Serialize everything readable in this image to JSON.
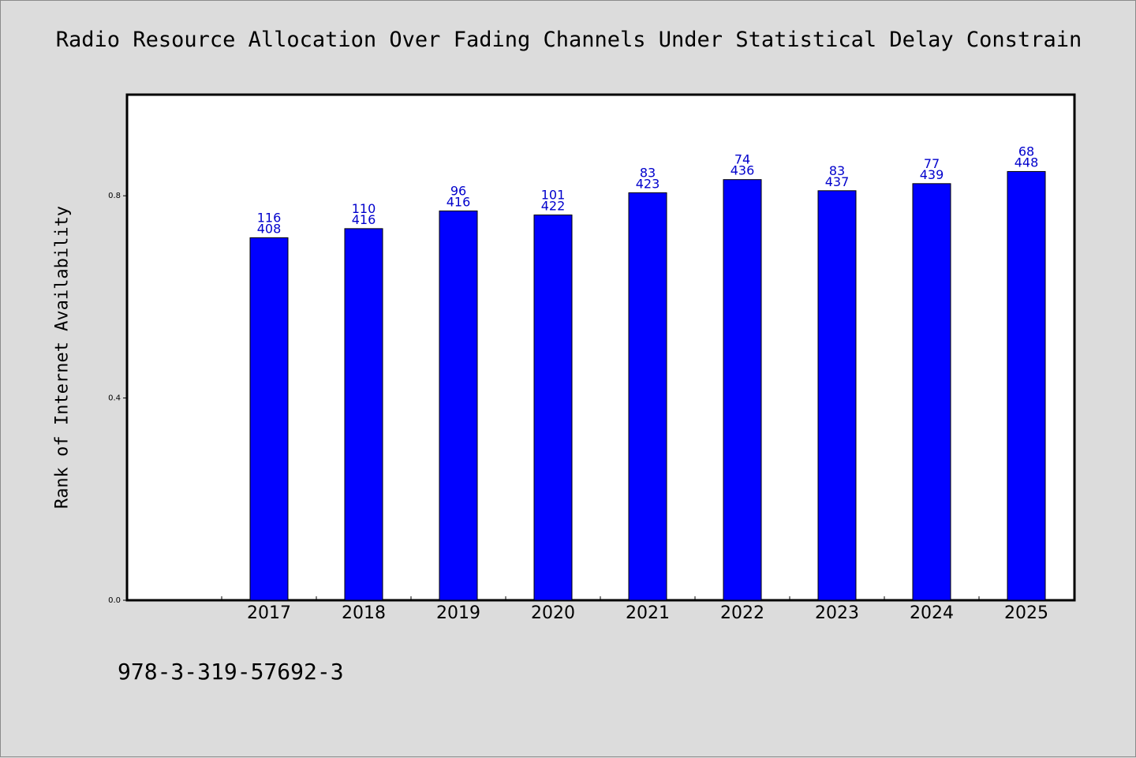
{
  "chart_data": {
    "type": "bar",
    "title": "Radio Resource Allocation Over Fading Channels Under Statistical Delay Constrain",
    "xlabel": "",
    "ylabel": "Rank of Internet Availability",
    "categories": [
      "2017",
      "2018",
      "2019",
      "2020",
      "2021",
      "2022",
      "2023",
      "2024",
      "2025"
    ],
    "series": [
      {
        "values": [
          0.717,
          0.735,
          0.77,
          0.762,
          0.806,
          0.832,
          0.81,
          0.824,
          0.848
        ],
        "color": "#0000ff"
      }
    ],
    "data_labels": [
      [
        "116",
        "408"
      ],
      [
        "110",
        "416"
      ],
      [
        "96",
        "416"
      ],
      [
        "101",
        "422"
      ],
      [
        "83",
        "423"
      ],
      [
        "74",
        "436"
      ],
      [
        "83",
        "437"
      ],
      [
        "77",
        "439"
      ],
      [
        "68",
        "448"
      ]
    ],
    "yticks": [
      "0.0",
      "0.4",
      "0.8"
    ],
    "ylim": [
      0,
      1.0
    ],
    "grid": false,
    "legend": "none",
    "colors": {
      "bar": "#0000ff",
      "data_label": "#0000cc",
      "plot_background": "#ffffff",
      "page_background": "#dcdcdc"
    }
  },
  "footer": {
    "isbn": "978-3-319-57692-3"
  }
}
